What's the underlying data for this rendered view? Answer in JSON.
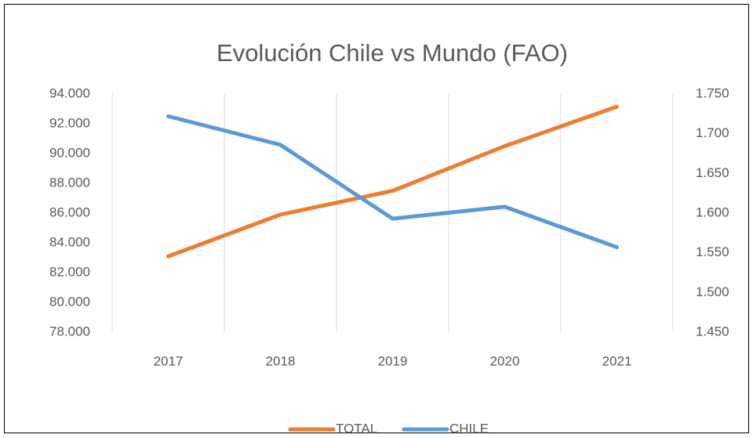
{
  "chart_data": {
    "type": "line",
    "title": "Evolución Chile vs Mundo (FAO)",
    "categories": [
      "2017",
      "2018",
      "2019",
      "2020",
      "2021"
    ],
    "series": [
      {
        "name": "TOTAL",
        "color": "#ed7d31",
        "values": [
          83100,
          85900,
          87500,
          90500,
          93150
        ]
      },
      {
        "name": "CHILE",
        "color": "#5b9bd5",
        "axis": "y2",
        "values": [
          1722,
          1686,
          1593,
          1608,
          1557
        ]
      }
    ],
    "ylim": [
      78000,
      94000
    ],
    "yticks": [
      {
        "value": 78000,
        "label": "78.000"
      },
      {
        "value": 80000,
        "label": "80.000"
      },
      {
        "value": 82000,
        "label": "82.000"
      },
      {
        "value": 84000,
        "label": "84.000"
      },
      {
        "value": 86000,
        "label": "86.000"
      },
      {
        "value": 88000,
        "label": "88.000"
      },
      {
        "value": 90000,
        "label": "90.000"
      },
      {
        "value": 92000,
        "label": "92.000"
      },
      {
        "value": 94000,
        "label": "94.000"
      }
    ],
    "y2lim": [
      1450,
      1750
    ],
    "y2ticks": [
      {
        "value": 1450,
        "label": "1.450"
      },
      {
        "value": 1500,
        "label": "1.500"
      },
      {
        "value": 1550,
        "label": "1.550"
      },
      {
        "value": 1600,
        "label": "1.600"
      },
      {
        "value": 1650,
        "label": "1.650"
      },
      {
        "value": 1700,
        "label": "1.700"
      },
      {
        "value": 1750,
        "label": "1.750"
      }
    ],
    "grid": true,
    "legend": "bottom"
  }
}
